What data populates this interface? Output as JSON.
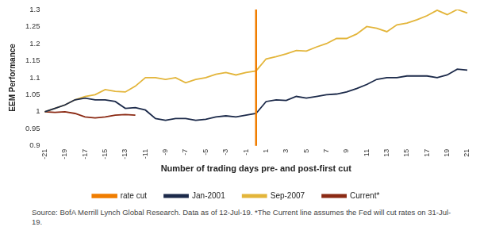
{
  "chart_data": {
    "type": "line",
    "x_label": "Number of trading days pre- and post-first cut",
    "y_label": "EEM Performance",
    "categories": [
      -21,
      null,
      -19,
      null,
      -17,
      null,
      -15,
      null,
      -13,
      null,
      -11,
      null,
      -9,
      null,
      -7,
      null,
      -5,
      null,
      -3,
      null,
      -1,
      null,
      1,
      null,
      3,
      null,
      5,
      null,
      7,
      null,
      9,
      null,
      11,
      null,
      13,
      null,
      15,
      null,
      17,
      null,
      19,
      null,
      21
    ],
    "vlines": [
      {
        "name": "rate cut",
        "x": 0,
        "color": "#f07d00"
      }
    ],
    "series": [
      {
        "name": "Jan-2001",
        "color": "#1c2a4a",
        "values": [
          1.0,
          1.01,
          1.02,
          1.035,
          1.04,
          1.035,
          1.035,
          1.03,
          1.01,
          1.012,
          1.005,
          0.98,
          0.975,
          0.98,
          0.98,
          0.975,
          0.978,
          0.985,
          0.988,
          0.985,
          0.99,
          0.995,
          1.03,
          1.035,
          1.033,
          1.045,
          1.04,
          1.045,
          1.05,
          1.052,
          1.058,
          1.068,
          1.08,
          1.095,
          1.1,
          1.1,
          1.105,
          1.105,
          1.105,
          1.1,
          1.108,
          1.125,
          1.122
        ]
      },
      {
        "name": "Sep-2007",
        "color": "#e3b53a",
        "values": [
          1.0,
          1.01,
          1.02,
          1.035,
          1.045,
          1.05,
          1.065,
          1.06,
          1.058,
          1.075,
          1.1,
          1.1,
          1.095,
          1.1,
          1.085,
          1.095,
          1.1,
          1.11,
          1.115,
          1.108,
          1.115,
          1.12,
          1.155,
          1.162,
          1.17,
          1.18,
          1.178,
          1.19,
          1.2,
          1.215,
          1.215,
          1.228,
          1.25,
          1.245,
          1.235,
          1.255,
          1.26,
          1.27,
          1.282,
          1.298,
          1.285,
          1.3,
          1.29
        ]
      },
      {
        "name": "Current*",
        "color": "#8b2a14",
        "values": [
          1.0,
          0.998,
          1.0,
          0.995,
          0.985,
          0.982,
          0.985,
          0.99,
          0.992,
          0.99,
          null,
          null,
          null,
          null,
          null,
          null,
          null,
          null,
          null,
          null,
          null,
          null,
          null,
          null,
          null,
          null,
          null,
          null,
          null,
          null,
          null,
          null,
          null,
          null,
          null,
          null,
          null,
          null,
          null,
          null,
          null,
          null,
          null
        ]
      }
    ],
    "ylim": [
      0.9,
      1.3
    ],
    "yticks": [
      0.9,
      0.95,
      1,
      1.05,
      1.1,
      1.15,
      1.2,
      1.25,
      1.3
    ],
    "grid": false,
    "legend": "bottom",
    "note": "Source: BofA Merrill Lynch Global Research. Data as of 12-Jul-19. *The Current line assumes the Fed will cut rates on 31-Jul-19."
  }
}
